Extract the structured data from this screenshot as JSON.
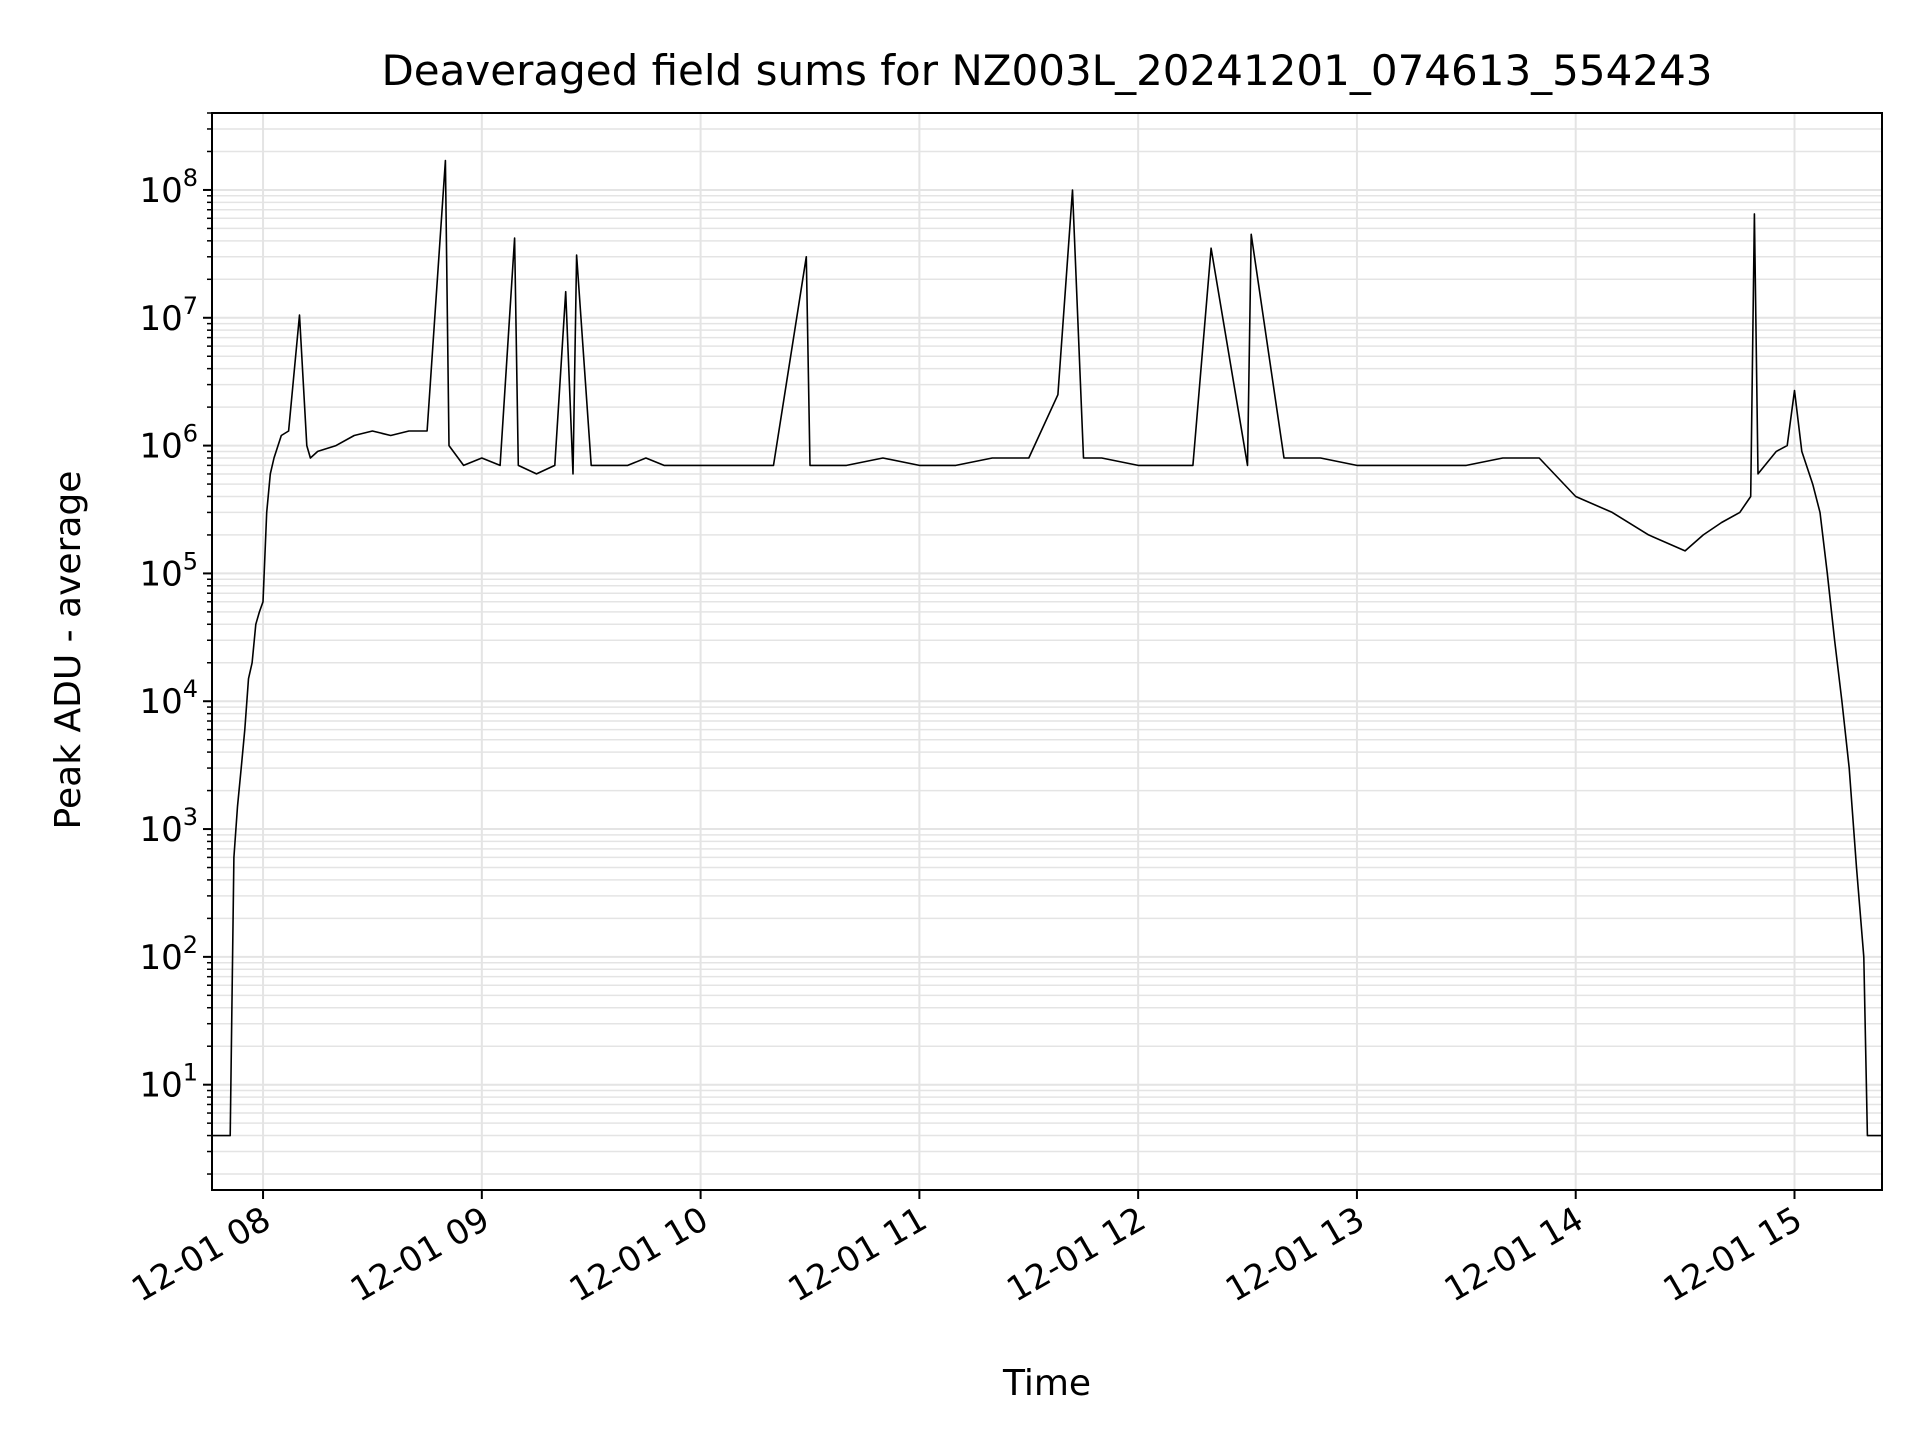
{
  "chart_data": {
    "type": "line",
    "title": "Deaveraged field sums for NZ003L_20241201_074613_554243",
    "xlabel": "Time",
    "ylabel": "Peak ADU - average",
    "yscale": "log",
    "ylim": [
      1.5,
      400000000
    ],
    "xlim": [
      "2024-12-01 07:46",
      "2024-12-01 15:24"
    ],
    "grid": true,
    "legend": "none",
    "line_color": "#000000",
    "grid_color": "#e4e4e4",
    "x_ticks": [
      {
        "label": "12-01 08",
        "value": "2024-12-01 08:00"
      },
      {
        "label": "12-01 09",
        "value": "2024-12-01 09:00"
      },
      {
        "label": "12-01 10",
        "value": "2024-12-01 10:00"
      },
      {
        "label": "12-01 11",
        "value": "2024-12-01 11:00"
      },
      {
        "label": "12-01 12",
        "value": "2024-12-01 12:00"
      },
      {
        "label": "12-01 13",
        "value": "2024-12-01 13:00"
      },
      {
        "label": "12-01 14",
        "value": "2024-12-01 14:00"
      },
      {
        "label": "12-01 15",
        "value": "2024-12-01 15:00"
      }
    ],
    "y_ticks": [
      {
        "base": "10",
        "exp": "1",
        "value": 10
      },
      {
        "base": "10",
        "exp": "2",
        "value": 100
      },
      {
        "base": "10",
        "exp": "3",
        "value": 1000
      },
      {
        "base": "10",
        "exp": "4",
        "value": 10000
      },
      {
        "base": "10",
        "exp": "5",
        "value": 100000
      },
      {
        "base": "10",
        "exp": "6",
        "value": 1000000
      },
      {
        "base": "10",
        "exp": "7",
        "value": 10000000
      },
      {
        "base": "10",
        "exp": "8",
        "value": 100000000
      }
    ],
    "series": [
      {
        "x": [
          "2024-12-01 07:46",
          "2024-12-01 07:49",
          "2024-12-01 07:50",
          "2024-12-01 07:51",
          "2024-12-01 07:52",
          "2024-12-01 07:53",
          "2024-12-01 07:54",
          "2024-12-01 07:55",
          "2024-12-01 07:56",
          "2024-12-01 07:57",
          "2024-12-01 07:58",
          "2024-12-01 07:59",
          "2024-12-01 08:00",
          "2024-12-01 08:01",
          "2024-12-01 08:02",
          "2024-12-01 08:03",
          "2024-12-01 08:05",
          "2024-12-01 08:07",
          "2024-12-01 08:10",
          "2024-12-01 08:12",
          "2024-12-01 08:13",
          "2024-12-01 08:15",
          "2024-12-01 08:20",
          "2024-12-01 08:25",
          "2024-12-01 08:30",
          "2024-12-01 08:35",
          "2024-12-01 08:40",
          "2024-12-01 08:45",
          "2024-12-01 08:50",
          "2024-12-01 08:51",
          "2024-12-01 08:55",
          "2024-12-01 09:00",
          "2024-12-01 09:05",
          "2024-12-01 09:09",
          "2024-12-01 09:10",
          "2024-12-01 09:15",
          "2024-12-01 09:20",
          "2024-12-01 09:23",
          "2024-12-01 09:25",
          "2024-12-01 09:26",
          "2024-12-01 09:30",
          "2024-12-01 09:35",
          "2024-12-01 09:40",
          "2024-12-01 09:45",
          "2024-12-01 09:50",
          "2024-12-01 10:00",
          "2024-12-01 10:10",
          "2024-12-01 10:20",
          "2024-12-01 10:29",
          "2024-12-01 10:30",
          "2024-12-01 10:40",
          "2024-12-01 10:50",
          "2024-12-01 11:00",
          "2024-12-01 11:10",
          "2024-12-01 11:20",
          "2024-12-01 11:30",
          "2024-12-01 11:38",
          "2024-12-01 11:42",
          "2024-12-01 11:45",
          "2024-12-01 11:50",
          "2024-12-01 12:00",
          "2024-12-01 12:10",
          "2024-12-01 12:15",
          "2024-12-01 12:20",
          "2024-12-01 12:30",
          "2024-12-01 12:31",
          "2024-12-01 12:40",
          "2024-12-01 12:50",
          "2024-12-01 13:00",
          "2024-12-01 13:10",
          "2024-12-01 13:20",
          "2024-12-01 13:30",
          "2024-12-01 13:40",
          "2024-12-01 13:50",
          "2024-12-01 14:00",
          "2024-12-01 14:10",
          "2024-12-01 14:20",
          "2024-12-01 14:30",
          "2024-12-01 14:35",
          "2024-12-01 14:40",
          "2024-12-01 14:45",
          "2024-12-01 14:48",
          "2024-12-01 14:49",
          "2024-12-01 14:50",
          "2024-12-01 14:55",
          "2024-12-01 14:58",
          "2024-12-01 15:00",
          "2024-12-01 15:02",
          "2024-12-01 15:05",
          "2024-12-01 15:07",
          "2024-12-01 15:09",
          "2024-12-01 15:11",
          "2024-12-01 15:13",
          "2024-12-01 15:15",
          "2024-12-01 15:17",
          "2024-12-01 15:19",
          "2024-12-01 15:20",
          "2024-12-01 15:24"
        ],
        "y": [
          4,
          4,
          4,
          4,
          600,
          1500,
          3000,
          6000,
          15000,
          20000,
          40000,
          50000,
          60000,
          300000,
          600000,
          800000,
          1200000,
          1300000,
          10500000,
          1000000,
          800000,
          900000,
          1000000,
          1200000,
          1300000,
          1200000,
          1300000,
          1300000,
          170000000,
          1000000,
          700000,
          800000,
          700000,
          42000000,
          700000,
          600000,
          700000,
          16000000,
          600000,
          31000000,
          700000,
          700000,
          700000,
          800000,
          700000,
          700000,
          700000,
          700000,
          30000000,
          700000,
          700000,
          800000,
          700000,
          700000,
          800000,
          800000,
          2500000,
          100000000,
          800000,
          800000,
          700000,
          700000,
          700000,
          35000000,
          700000,
          45000000,
          800000,
          800000,
          700000,
          700000,
          700000,
          700000,
          800000,
          800000,
          400000,
          300000,
          200000,
          150000,
          200000,
          250000,
          300000,
          400000,
          65000000,
          600000,
          900000,
          1000000,
          2700000,
          900000,
          500000,
          300000,
          100000,
          30000,
          10000,
          3000,
          500,
          100,
          4,
          4
        ]
      }
    ]
  }
}
